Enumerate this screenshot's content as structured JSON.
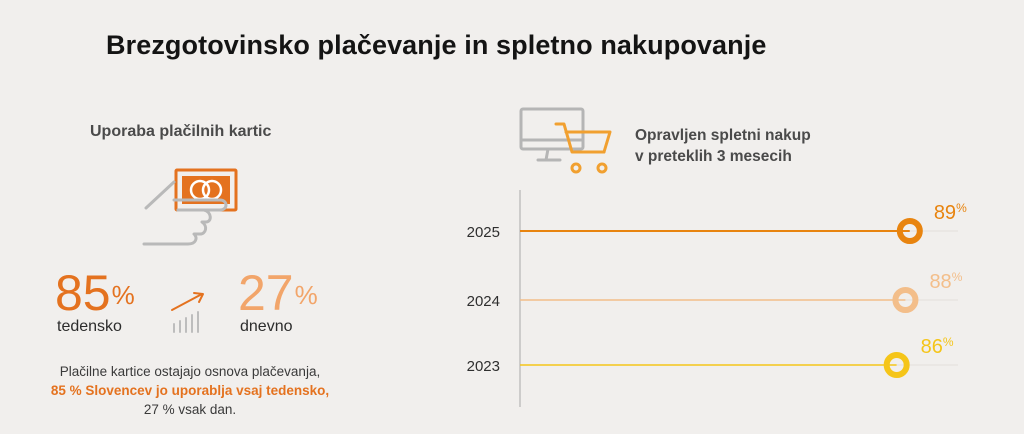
{
  "title": "Brezgotovinsko plačevanje in spletno nakupovanje",
  "left": {
    "heading": "Uporaba plačilnih kartic",
    "weekly": {
      "value": "85",
      "unit": "%",
      "label": "tedensko"
    },
    "daily": {
      "value": "27",
      "unit": "%",
      "label": "dnevno"
    },
    "paragraph": {
      "line1": "Plačilne kartice ostajajo osnova plačevanja,",
      "highlight": "85 % Slovencev jo uporablja vsaj tedensko,",
      "line3": "27 % vsak dan."
    },
    "colors": {
      "weekly": "#e4721f",
      "daily": "#f2a56a"
    },
    "icons": [
      "card-in-hand-icon",
      "growth-trend-icon"
    ]
  },
  "right": {
    "heading_line1": "Opravljen spletni nakup",
    "heading_line2": "v preteklih 3 mesecih",
    "icons": [
      "monitor-cart-icon"
    ]
  },
  "chart_data": {
    "type": "lollipop",
    "title": "",
    "categories": [
      "2025",
      "2024",
      "2023"
    ],
    "values": [
      89,
      88,
      86
    ],
    "value_labels": [
      "89%",
      "88%",
      "86%"
    ],
    "colors": [
      "#e8840f",
      "#f3be8a",
      "#f5c519"
    ],
    "xlim": [
      0,
      100
    ],
    "grid": false,
    "legend": "none"
  }
}
